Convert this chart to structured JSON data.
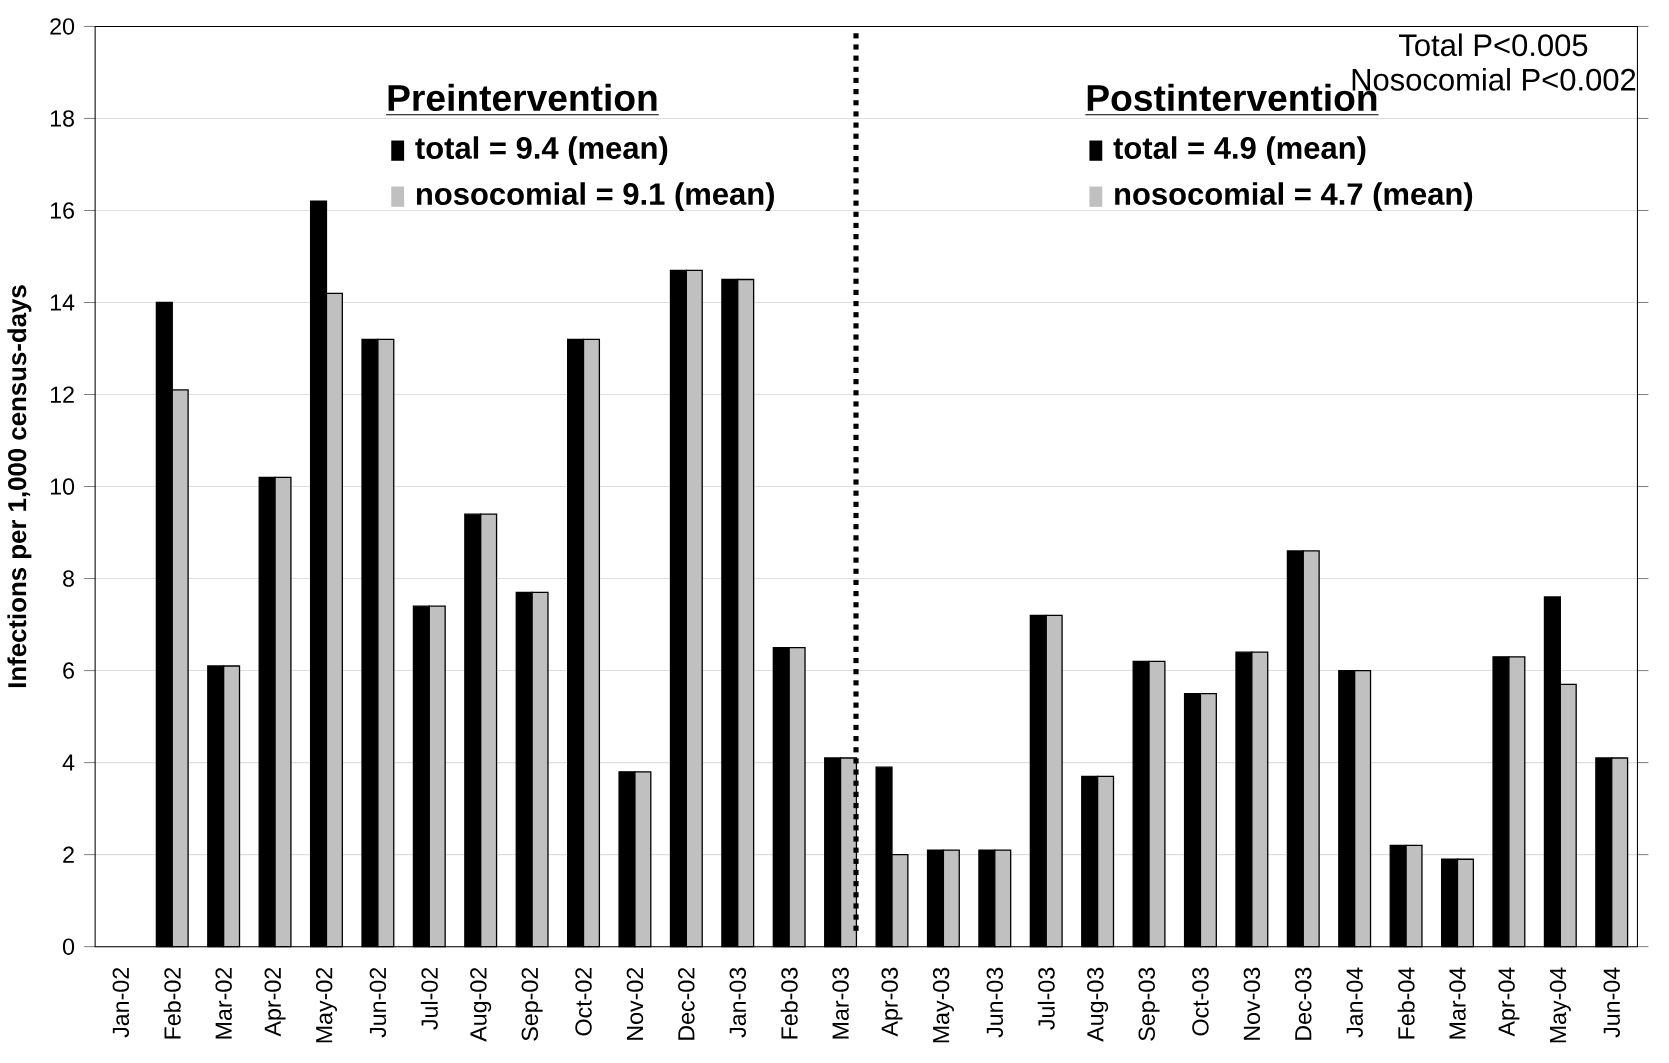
{
  "chart_data": {
    "type": "bar",
    "ylabel": "Infections per 1,000 census-days",
    "categories": [
      "Jan-02",
      "Feb-02",
      "Mar-02",
      "Apr-02",
      "May-02",
      "Jun-02",
      "Jul-02",
      "Aug-02",
      "Sep-02",
      "Oct-02",
      "Nov-02",
      "Dec-02",
      "Jan-03",
      "Feb-03",
      "Mar-03",
      "Apr-03",
      "May-03",
      "Jun-03",
      "Jul-03",
      "Aug-03",
      "Sep-03",
      "Oct-03",
      "Nov-03",
      "Dec-03",
      "Jan-04",
      "Feb-04",
      "Mar-04",
      "Apr-04",
      "May-04",
      "Jun-04"
    ],
    "series": [
      {
        "color": "#000000",
        "values": [
          null,
          14.0,
          6.1,
          10.2,
          16.2,
          13.2,
          7.4,
          9.4,
          7.7,
          13.2,
          3.8,
          14.7,
          14.5,
          6.5,
          4.1,
          3.9,
          2.1,
          2.1,
          7.2,
          3.7,
          6.2,
          5.5,
          6.4,
          8.6,
          6.0,
          2.2,
          1.9,
          6.3,
          7.6,
          4.1
        ]
      },
      {
        "color": "#c0c0c0",
        "values": [
          null,
          12.1,
          6.1,
          10.2,
          14.2,
          13.2,
          7.4,
          9.4,
          7.7,
          13.2,
          3.8,
          14.7,
          14.5,
          6.5,
          4.1,
          2.0,
          2.1,
          2.1,
          7.2,
          3.7,
          6.2,
          5.5,
          6.4,
          8.6,
          6.0,
          2.2,
          1.9,
          6.3,
          5.7,
          4.1
        ]
      }
    ],
    "ylim": [
      0,
      20
    ],
    "yticks": [
      0,
      2,
      4,
      6,
      8,
      10,
      12,
      14,
      16,
      18,
      20
    ],
    "grid": "y",
    "annotations": [
      "Preintervention",
      "total = 9.4 (mean)",
      "nosocomial = 9.1 (mean)",
      "Postintervention",
      "total = 4.9 (mean)",
      "nosocomial = 4.7 (mean)",
      "Total P<0.005",
      "Nosocomial P<0.002"
    ]
  }
}
